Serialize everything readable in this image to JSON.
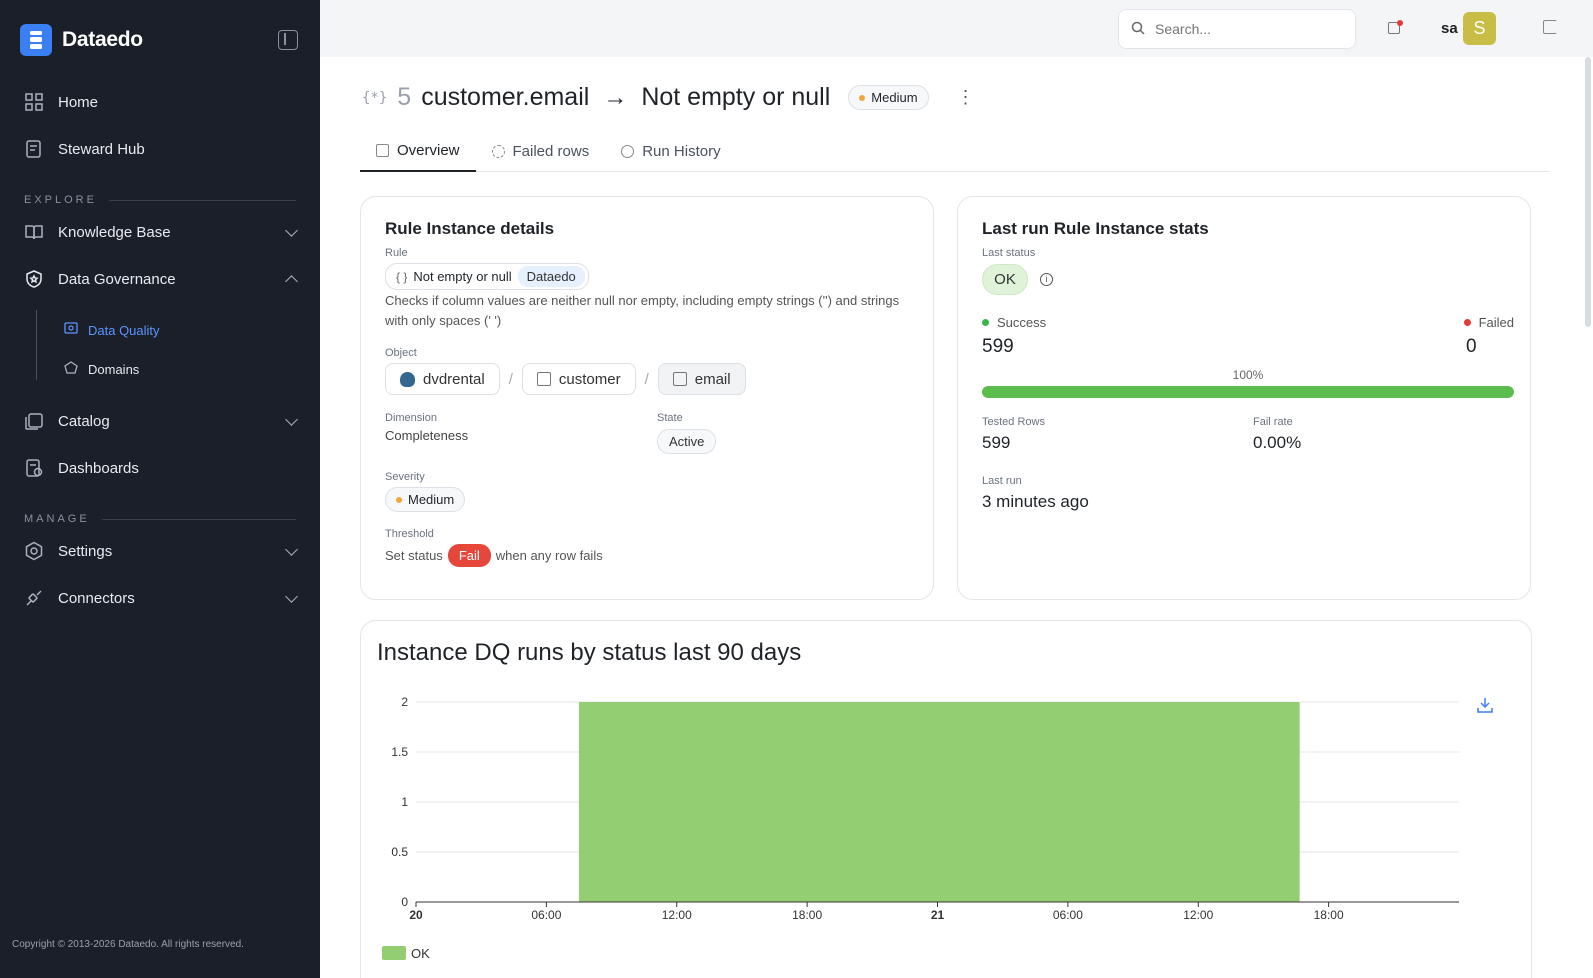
{
  "brand": {
    "name": "Dataedo",
    "accent": "#3b7ff5"
  },
  "sidebar": {
    "items": [
      {
        "label": "Home",
        "icon": "grid-icon"
      },
      {
        "label": "Steward Hub",
        "icon": "clipboard-icon"
      }
    ],
    "section_explore": "EXPLORE",
    "explore_items": [
      {
        "label": "Knowledge Base",
        "icon": "book-icon"
      },
      {
        "label": "Data Governance",
        "icon": "shield-icon"
      }
    ],
    "sub_items": [
      {
        "label": "Data Quality",
        "icon": "data-quality-icon",
        "active": true
      },
      {
        "label": "Domains",
        "icon": "domains-icon"
      }
    ],
    "catalog_items": [
      {
        "label": "Catalog",
        "icon": "catalog-icon"
      },
      {
        "label": "Dashboards",
        "icon": "dashboards-icon"
      }
    ],
    "section_manage": "MANAGE",
    "manage_items": [
      {
        "label": "Settings",
        "icon": "gear-icon"
      },
      {
        "label": "Connectors",
        "icon": "plug-icon"
      }
    ],
    "copyright": "Copyright © 2013-2026 Dataedo. All rights reserved."
  },
  "topbar": {
    "search_placeholder": "Search...",
    "username": "sa",
    "avatar_letter": "S"
  },
  "header": {
    "prefix": "{*}",
    "number": "5",
    "object": "customer.email",
    "arrow": "→",
    "rule": "Not empty or null",
    "severity": "Medium"
  },
  "tabs": [
    {
      "label": "Overview",
      "active": true
    },
    {
      "label": "Failed rows"
    },
    {
      "label": "Run History"
    }
  ],
  "details": {
    "title": "Rule Instance details",
    "rule_label": "Rule",
    "rule_brace": "{ }",
    "rule_name": "Not empty or null",
    "rule_tag": "Dataedo",
    "description": "Checks if column values are neither null nor empty, including empty strings ('') and strings with only spaces (' ')",
    "object_label": "Object",
    "object_db": "dvdrental",
    "object_sep": "/",
    "object_table": "customer",
    "object_column": "email",
    "dimension_label": "Dimension",
    "dimension_value": "Completeness",
    "state_label": "State",
    "state_value": "Active",
    "severity_label": "Severity",
    "severity_value": "Medium",
    "threshold_label": "Threshold",
    "threshold_pre": "Set status",
    "threshold_badge": "Fail",
    "threshold_post": "when any row fails"
  },
  "stats": {
    "title": "Last run Rule Instance stats",
    "last_status_label": "Last status",
    "last_status": "OK",
    "success_label": "Success",
    "success_value": "599",
    "failed_label": "Failed",
    "failed_value": "0",
    "progress_label": "100%",
    "progress": 1.0,
    "tested_rows_label": "Tested Rows",
    "tested_rows_value": "599",
    "fail_rate_label": "Fail rate",
    "fail_rate_value": "0.00%",
    "last_run_label": "Last run",
    "last_run_value": "3 minutes ago"
  },
  "chart_title": "Instance DQ runs by status last 90 days",
  "chart_data": {
    "type": "area",
    "title": "Instance DQ runs by status last 90 days",
    "x_ticks": [
      "20",
      "06:00",
      "12:00",
      "18:00",
      "21",
      "06:00",
      "12:00",
      "18:00"
    ],
    "y_ticks": [
      "0",
      "0.5",
      "1",
      "1.5",
      "2"
    ],
    "ylim": [
      0,
      2
    ],
    "series": [
      {
        "name": "OK",
        "color": "#93cf72",
        "start": "20 07:30",
        "end": "21 16:40",
        "value": 2
      }
    ],
    "grid": true,
    "legend": "bottom-left"
  }
}
